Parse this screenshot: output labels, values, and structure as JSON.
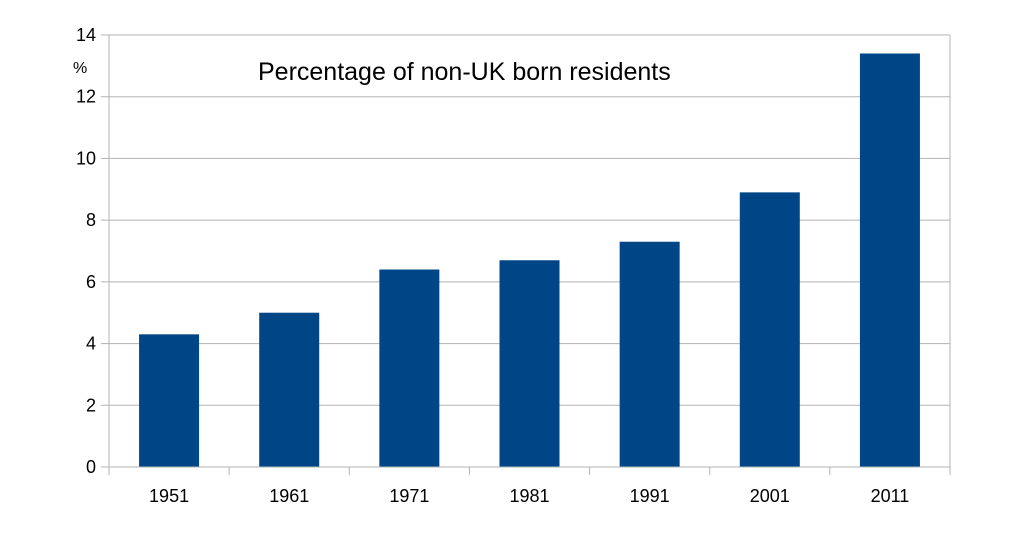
{
  "chart_data": {
    "type": "bar",
    "title": "Percentage of non-UK born residents",
    "ylabel": "%",
    "xlabel": "",
    "categories": [
      "1951",
      "1961",
      "1971",
      "1981",
      "1991",
      "2001",
      "2011"
    ],
    "values": [
      4.3,
      5.0,
      6.4,
      6.7,
      7.3,
      8.9,
      13.4
    ],
    "ylim": [
      0,
      14
    ],
    "yticks": [
      0,
      2,
      4,
      6,
      8,
      10,
      12,
      14
    ],
    "grid": true,
    "legend": "none",
    "bar_color": "#004586",
    "grid_color": "#b3b3b3"
  }
}
